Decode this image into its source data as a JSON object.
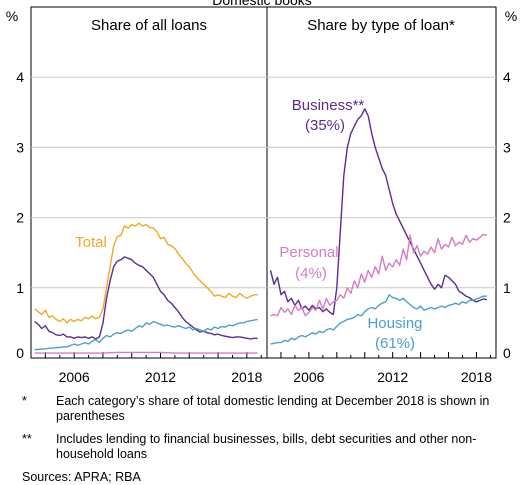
{
  "chart_data": {
    "type": "line",
    "title": "Domestic books",
    "unit_left": "%",
    "unit_right": "%",
    "ylim": [
      0,
      5
    ],
    "yticks": [
      0,
      1,
      2,
      3,
      4
    ],
    "xlim": [
      2003.0,
      2019.4
    ],
    "xticks": [
      2006,
      2012,
      2018
    ],
    "panels": [
      {
        "title": "Share of all loans",
        "series": [
          {
            "name": "Total",
            "color": "#f2a824",
            "x": [
              2003.25,
              2003.5,
              2003.75,
              2004.0,
              2004.25,
              2004.5,
              2004.75,
              2005.0,
              2005.25,
              2005.5,
              2005.75,
              2006.0,
              2006.25,
              2006.5,
              2006.75,
              2007.0,
              2007.25,
              2007.5,
              2007.75,
              2008.0,
              2008.25,
              2008.5,
              2008.75,
              2009.0,
              2009.25,
              2009.5,
              2009.75,
              2010.0,
              2010.25,
              2010.5,
              2010.75,
              2011.0,
              2011.25,
              2011.5,
              2011.75,
              2012.0,
              2012.25,
              2012.5,
              2012.75,
              2013.0,
              2013.25,
              2013.5,
              2013.75,
              2014.0,
              2014.25,
              2014.5,
              2014.75,
              2015.0,
              2015.25,
              2015.5,
              2015.75,
              2016.0,
              2016.25,
              2016.5,
              2016.75,
              2017.0,
              2017.25,
              2017.5,
              2017.75,
              2018.0,
              2018.25,
              2018.5,
              2018.75
            ],
            "values": [
              0.7,
              0.66,
              0.62,
              0.68,
              0.58,
              0.6,
              0.55,
              0.52,
              0.56,
              0.5,
              0.55,
              0.52,
              0.55,
              0.53,
              0.58,
              0.56,
              0.6,
              0.56,
              0.58,
              0.7,
              1.0,
              1.3,
              1.6,
              1.73,
              1.75,
              1.88,
              1.85,
              1.9,
              1.88,
              1.92,
              1.88,
              1.9,
              1.86,
              1.85,
              1.8,
              1.7,
              1.72,
              1.62,
              1.6,
              1.56,
              1.48,
              1.42,
              1.35,
              1.3,
              1.22,
              1.15,
              1.1,
              1.05,
              1.0,
              0.95,
              0.88,
              0.9,
              0.88,
              0.86,
              0.92,
              0.88,
              0.86,
              0.92,
              0.88,
              0.85,
              0.88,
              0.9,
              0.9
            ]
          },
          {
            "name": "Business",
            "color": "#5b2c91",
            "x": [
              2003.25,
              2003.5,
              2003.75,
              2004.0,
              2004.25,
              2004.5,
              2004.75,
              2005.0,
              2005.25,
              2005.5,
              2005.75,
              2006.0,
              2006.25,
              2006.5,
              2006.75,
              2007.0,
              2007.25,
              2007.5,
              2007.75,
              2008.0,
              2008.25,
              2008.5,
              2008.75,
              2009.0,
              2009.25,
              2009.5,
              2009.75,
              2010.0,
              2010.25,
              2010.5,
              2010.75,
              2011.0,
              2011.25,
              2011.5,
              2011.75,
              2012.0,
              2012.25,
              2012.5,
              2012.75,
              2013.0,
              2013.25,
              2013.5,
              2013.75,
              2014.0,
              2014.25,
              2014.5,
              2014.75,
              2015.0,
              2015.25,
              2015.5,
              2015.75,
              2016.0,
              2016.25,
              2016.5,
              2016.75,
              2017.0,
              2017.25,
              2017.5,
              2017.75,
              2018.0,
              2018.25,
              2018.5,
              2018.75
            ],
            "values": [
              0.52,
              0.48,
              0.42,
              0.46,
              0.38,
              0.36,
              0.33,
              0.32,
              0.34,
              0.3,
              0.3,
              0.28,
              0.3,
              0.29,
              0.3,
              0.28,
              0.3,
              0.27,
              0.3,
              0.5,
              0.85,
              1.1,
              1.3,
              1.38,
              1.4,
              1.44,
              1.42,
              1.4,
              1.35,
              1.32,
              1.3,
              1.25,
              1.2,
              1.15,
              1.05,
              0.95,
              0.9,
              0.82,
              0.78,
              0.72,
              0.66,
              0.58,
              0.52,
              0.48,
              0.44,
              0.4,
              0.37,
              0.38,
              0.36,
              0.35,
              0.33,
              0.34,
              0.32,
              0.31,
              0.3,
              0.29,
              0.3,
              0.3,
              0.29,
              0.28,
              0.27,
              0.28,
              0.28
            ]
          },
          {
            "name": "Housing",
            "color": "#4aa0c9",
            "x": [
              2003.25,
              2003.5,
              2003.75,
              2004.0,
              2004.25,
              2004.5,
              2004.75,
              2005.0,
              2005.25,
              2005.5,
              2005.75,
              2006.0,
              2006.25,
              2006.5,
              2006.75,
              2007.0,
              2007.25,
              2007.5,
              2007.75,
              2008.0,
              2008.25,
              2008.5,
              2008.75,
              2009.0,
              2009.25,
              2009.5,
              2009.75,
              2010.0,
              2010.25,
              2010.5,
              2010.75,
              2011.0,
              2011.25,
              2011.5,
              2011.75,
              2012.0,
              2012.25,
              2012.5,
              2012.75,
              2013.0,
              2013.25,
              2013.5,
              2013.75,
              2014.0,
              2014.25,
              2014.5,
              2014.75,
              2015.0,
              2015.25,
              2015.5,
              2015.75,
              2016.0,
              2016.25,
              2016.5,
              2016.75,
              2017.0,
              2017.25,
              2017.5,
              2017.75,
              2018.0,
              2018.25,
              2018.5,
              2018.75
            ],
            "values": [
              0.12,
              0.12,
              0.13,
              0.13,
              0.14,
              0.14,
              0.15,
              0.15,
              0.16,
              0.16,
              0.18,
              0.2,
              0.18,
              0.2,
              0.22,
              0.2,
              0.24,
              0.26,
              0.22,
              0.28,
              0.32,
              0.3,
              0.34,
              0.36,
              0.35,
              0.38,
              0.4,
              0.38,
              0.42,
              0.46,
              0.44,
              0.5,
              0.48,
              0.52,
              0.5,
              0.48,
              0.46,
              0.47,
              0.45,
              0.44,
              0.46,
              0.44,
              0.42,
              0.44,
              0.4,
              0.42,
              0.4,
              0.38,
              0.42,
              0.4,
              0.44,
              0.42,
              0.45,
              0.44,
              0.47,
              0.46,
              0.48,
              0.5,
              0.5,
              0.52,
              0.53,
              0.54,
              0.55
            ]
          },
          {
            "name": "Personal",
            "color": "#d57cc2",
            "x": [
              2003.25,
              2004.0,
              2005.0,
              2006.0,
              2007.0,
              2008.0,
              2009.0,
              2010.0,
              2011.0,
              2012.0,
              2013.0,
              2014.0,
              2015.0,
              2016.0,
              2017.0,
              2018.0,
              2018.75
            ],
            "values": [
              0.07,
              0.07,
              0.07,
              0.07,
              0.07,
              0.07,
              0.08,
              0.08,
              0.08,
              0.08,
              0.07,
              0.07,
              0.07,
              0.07,
              0.07,
              0.07,
              0.07
            ]
          }
        ]
      },
      {
        "title": "Share by type of loan*",
        "series": [
          {
            "name": "Business**",
            "share": "(35%)",
            "color": "#5b2c91",
            "x": [
              2003.25,
              2003.5,
              2003.75,
              2004.0,
              2004.25,
              2004.5,
              2004.75,
              2005.0,
              2005.25,
              2005.5,
              2005.75,
              2006.0,
              2006.25,
              2006.5,
              2006.75,
              2007.0,
              2007.25,
              2007.5,
              2007.75,
              2008.0,
              2008.25,
              2008.5,
              2008.75,
              2009.0,
              2009.25,
              2009.5,
              2009.75,
              2010.0,
              2010.25,
              2010.5,
              2010.75,
              2011.0,
              2011.25,
              2011.5,
              2011.75,
              2012.0,
              2012.25,
              2012.5,
              2012.75,
              2013.0,
              2013.25,
              2013.5,
              2013.75,
              2014.0,
              2014.25,
              2014.5,
              2014.75,
              2015.0,
              2015.25,
              2015.5,
              2015.75,
              2016.0,
              2016.25,
              2016.5,
              2016.75,
              2017.0,
              2017.25,
              2017.5,
              2017.75,
              2018.0,
              2018.25,
              2018.5,
              2018.75
            ],
            "values": [
              1.25,
              1.05,
              1.15,
              0.9,
              0.95,
              0.8,
              0.85,
              0.75,
              0.82,
              0.7,
              0.74,
              0.68,
              0.75,
              0.7,
              0.72,
              0.66,
              0.7,
              0.65,
              0.62,
              1.0,
              1.8,
              2.6,
              3.0,
              3.2,
              3.3,
              3.4,
              3.45,
              3.55,
              3.45,
              3.2,
              3.0,
              2.85,
              2.7,
              2.6,
              2.4,
              2.2,
              2.05,
              1.95,
              1.85,
              1.75,
              1.65,
              1.55,
              1.45,
              1.35,
              1.25,
              1.15,
              1.05,
              0.98,
              1.05,
              1.0,
              1.18,
              1.15,
              1.1,
              1.05,
              0.95,
              0.92,
              0.88,
              0.86,
              0.82,
              0.8,
              0.82,
              0.84,
              0.83
            ]
          },
          {
            "name": "Personal",
            "share": "(4%)",
            "color": "#d57cc2",
            "x": [
              2003.25,
              2003.5,
              2003.75,
              2004.0,
              2004.25,
              2004.5,
              2004.75,
              2005.0,
              2005.25,
              2005.5,
              2005.75,
              2006.0,
              2006.25,
              2006.5,
              2006.75,
              2007.0,
              2007.25,
              2007.5,
              2007.75,
              2008.0,
              2008.25,
              2008.5,
              2008.75,
              2009.0,
              2009.25,
              2009.5,
              2009.75,
              2010.0,
              2010.25,
              2010.5,
              2010.75,
              2011.0,
              2011.25,
              2011.5,
              2011.75,
              2012.0,
              2012.25,
              2012.5,
              2012.75,
              2013.0,
              2013.25,
              2013.5,
              2013.75,
              2014.0,
              2014.25,
              2014.5,
              2014.75,
              2015.0,
              2015.25,
              2015.5,
              2015.75,
              2016.0,
              2016.25,
              2016.5,
              2016.75,
              2017.0,
              2017.25,
              2017.5,
              2017.75,
              2018.0,
              2018.25,
              2018.5,
              2018.75
            ],
            "values": [
              0.6,
              0.62,
              0.6,
              0.72,
              0.65,
              0.7,
              0.62,
              0.75,
              0.68,
              0.72,
              0.6,
              0.65,
              0.72,
              0.68,
              0.82,
              0.7,
              0.85,
              0.75,
              0.8,
              0.82,
              0.9,
              0.85,
              1.0,
              0.92,
              1.1,
              1.0,
              1.2,
              1.08,
              1.25,
              1.15,
              1.3,
              1.2,
              1.45,
              1.25,
              1.35,
              1.3,
              1.4,
              1.32,
              1.55,
              1.4,
              1.75,
              1.5,
              1.6,
              1.45,
              1.52,
              1.48,
              1.58,
              1.5,
              1.7,
              1.55,
              1.62,
              1.58,
              1.72,
              1.6,
              1.65,
              1.62,
              1.75,
              1.65,
              1.7,
              1.68,
              1.72,
              1.76,
              1.75
            ]
          },
          {
            "name": "Housing",
            "share": "(61%)",
            "color": "#4aa0c9",
            "x": [
              2003.25,
              2003.5,
              2003.75,
              2004.0,
              2004.25,
              2004.5,
              2004.75,
              2005.0,
              2005.25,
              2005.5,
              2005.75,
              2006.0,
              2006.25,
              2006.5,
              2006.75,
              2007.0,
              2007.25,
              2007.5,
              2007.75,
              2008.0,
              2008.25,
              2008.5,
              2008.75,
              2009.0,
              2009.25,
              2009.5,
              2009.75,
              2010.0,
              2010.25,
              2010.5,
              2010.75,
              2011.0,
              2011.25,
              2011.5,
              2011.75,
              2012.0,
              2012.25,
              2012.5,
              2012.75,
              2013.0,
              2013.25,
              2013.5,
              2013.75,
              2014.0,
              2014.25,
              2014.5,
              2014.75,
              2015.0,
              2015.25,
              2015.5,
              2015.75,
              2016.0,
              2016.25,
              2016.5,
              2016.75,
              2017.0,
              2017.25,
              2017.5,
              2017.75,
              2018.0,
              2018.25,
              2018.5,
              2018.75
            ],
            "values": [
              0.2,
              0.21,
              0.22,
              0.22,
              0.25,
              0.24,
              0.28,
              0.26,
              0.3,
              0.32,
              0.3,
              0.33,
              0.36,
              0.34,
              0.38,
              0.36,
              0.4,
              0.42,
              0.4,
              0.45,
              0.5,
              0.52,
              0.55,
              0.56,
              0.58,
              0.62,
              0.6,
              0.66,
              0.7,
              0.72,
              0.7,
              0.75,
              0.78,
              0.8,
              0.9,
              0.86,
              0.85,
              0.82,
              0.85,
              0.8,
              0.76,
              0.72,
              0.7,
              0.74,
              0.68,
              0.7,
              0.72,
              0.7,
              0.72,
              0.74,
              0.72,
              0.75,
              0.76,
              0.78,
              0.76,
              0.8,
              0.78,
              0.82,
              0.82,
              0.84,
              0.86,
              0.88,
              0.88
            ]
          }
        ]
      }
    ],
    "annotations": {
      "total_label": "Total",
      "business_label": "Business**",
      "business_share": "(35%)",
      "personal_label": "Personal",
      "personal_share": "(4%)",
      "housing_label": "Housing",
      "housing_share": "(61%)"
    }
  },
  "notes": [
    {
      "marker": "*",
      "text": "Each category’s share of total domestic lending at December 2018 is shown in parentheses"
    },
    {
      "marker": "**",
      "text": "Includes lending to financial businesses, bills, debt securities and other non-household loans"
    }
  ],
  "sources": "Sources: APRA; RBA",
  "colors": {
    "total": "#f2a824",
    "business": "#5b2c91",
    "housing": "#4aa0c9",
    "personal": "#d57cc2"
  }
}
